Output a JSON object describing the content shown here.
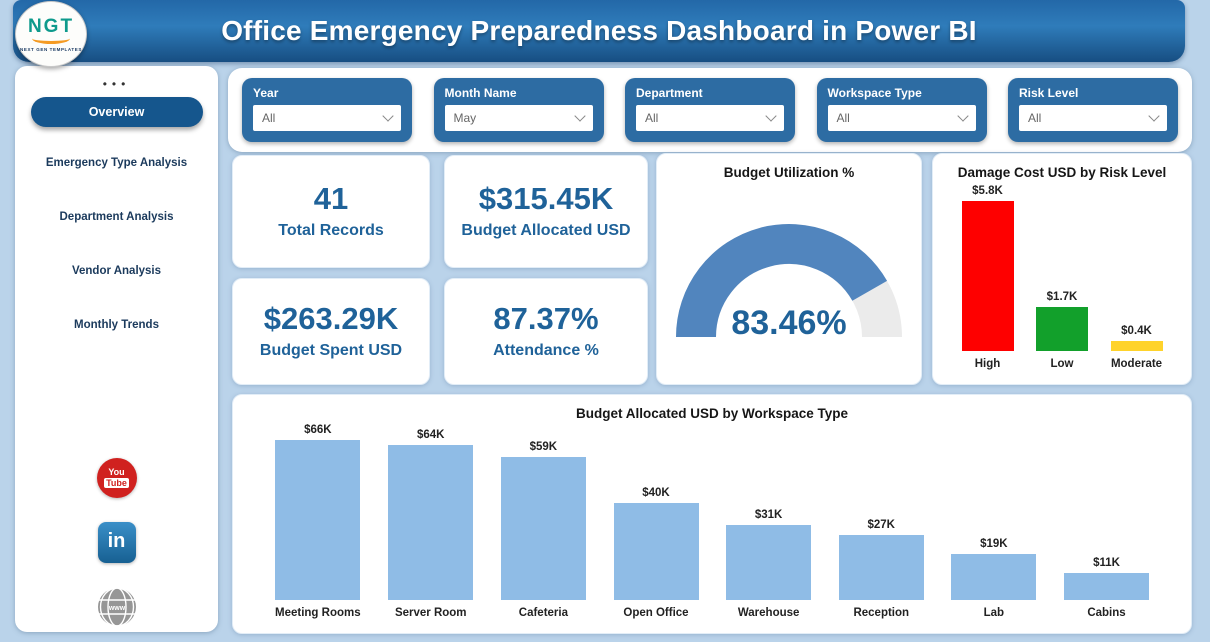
{
  "header": {
    "title": "Office Emergency Preparedness Dashboard in Power BI",
    "logo_text": "NGT",
    "logo_subtext": "NEXT GEN TEMPLATES"
  },
  "sidebar": {
    "menu_dots": "•••",
    "items": [
      {
        "label": "Overview",
        "active": true
      },
      {
        "label": "Emergency Type Analysis",
        "active": false
      },
      {
        "label": "Department Analysis",
        "active": false
      },
      {
        "label": "Vendor Analysis",
        "active": false
      },
      {
        "label": "Monthly Trends",
        "active": false
      }
    ],
    "social": {
      "youtube_line1": "You",
      "youtube_line2": "Tube",
      "linkedin_text": "in",
      "globe_text": "www"
    }
  },
  "filters": [
    {
      "label": "Year",
      "value": "All"
    },
    {
      "label": "Month Name",
      "value": "May"
    },
    {
      "label": "Department",
      "value": "All"
    },
    {
      "label": "Workspace Type",
      "value": "All"
    },
    {
      "label": "Risk Level",
      "value": "All"
    }
  ],
  "kpis": [
    {
      "value": "41",
      "label": "Total Records"
    },
    {
      "value": "$315.45K",
      "label": "Budget Allocated USD"
    },
    {
      "value": "$263.29K",
      "label": "Budget Spent USD"
    },
    {
      "value": "87.37%",
      "label": "Attendance %"
    }
  ],
  "chart_data": [
    {
      "type": "gauge",
      "title": "Budget Utilization %",
      "value": 83.46,
      "value_label": "83.46%",
      "min": 0,
      "max": 100,
      "arc_color": "#5185BE",
      "track_color": "#EBEBEB",
      "value_color": "#1F6299"
    },
    {
      "type": "bar",
      "title": "Damage Cost USD by Risk Level",
      "categories": [
        "High",
        "Low",
        "Moderate"
      ],
      "values": [
        5.8,
        1.7,
        0.4
      ],
      "data_labels": [
        "$5.8K",
        "$1.7K",
        "$0.4K"
      ],
      "colors": [
        "#FE0000",
        "#12A02B",
        "#FFD32B"
      ],
      "xlabel": "",
      "ylabel": "",
      "ylim": [
        0,
        5.8
      ],
      "grid": false,
      "legend": false
    },
    {
      "type": "bar",
      "title": "Budget Allocated USD by Workspace Type",
      "categories": [
        "Meeting Rooms",
        "Server Room",
        "Cafeteria",
        "Open Office",
        "Warehouse",
        "Reception",
        "Lab",
        "Cabins"
      ],
      "values": [
        66,
        64,
        59,
        40,
        31,
        27,
        19,
        11
      ],
      "data_labels": [
        "$66K",
        "$64K",
        "$59K",
        "$40K",
        "$31K",
        "$27K",
        "$19K",
        "$11K"
      ],
      "colors": [
        "#8FBCE6"
      ],
      "xlabel": "",
      "ylabel": "",
      "ylim": [
        0,
        66
      ],
      "grid": false,
      "legend": false
    }
  ],
  "theme": {
    "accent_blue": "#1F6299",
    "filter_blue": "#2D6CA3",
    "sidebar_pill_blue": "#15568D",
    "bar_light_blue": "#8FBCE6",
    "header_blue": "#2F7CBA",
    "header_blue_dark": "#174E82",
    "page_background": "#BAD3EA"
  }
}
